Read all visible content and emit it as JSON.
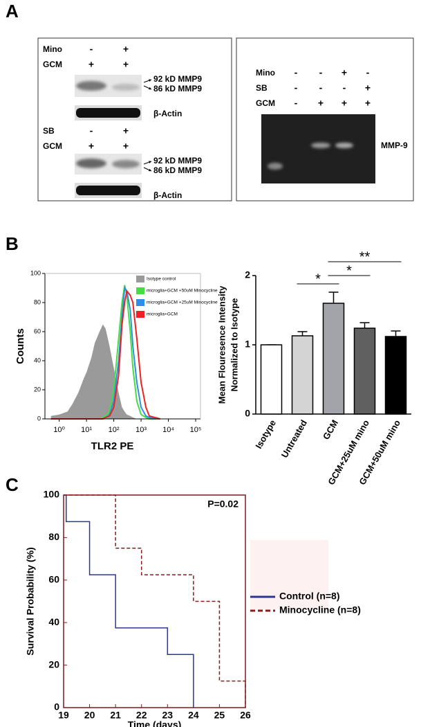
{
  "panel_labels": [
    "A",
    "B",
    "C"
  ],
  "blot_mino": {
    "rows": [
      {
        "label": "Mino",
        "marks": [
          "-",
          "+"
        ]
      },
      {
        "label": "GCM",
        "marks": [
          "+",
          "+"
        ]
      }
    ],
    "bands": [
      "92 kD MMP9",
      "86 kD MMP9"
    ],
    "control": "β-Actin"
  },
  "blot_sb": {
    "rows": [
      {
        "label": "SB",
        "marks": [
          "-",
          "+"
        ]
      },
      {
        "label": "GCM",
        "marks": [
          "+",
          "+"
        ]
      }
    ],
    "bands": [
      "92 kD MMP9",
      "86 kD MMP9"
    ],
    "control": "β-Actin"
  },
  "zymogram": {
    "rows": [
      {
        "label": "Mino",
        "marks": [
          "-",
          "-",
          "+",
          "-"
        ]
      },
      {
        "label": "SB",
        "marks": [
          "-",
          "-",
          "-",
          "+"
        ]
      },
      {
        "label": "GCM",
        "marks": [
          "-",
          "+",
          "+",
          "+"
        ]
      }
    ],
    "band": "MMP-9"
  },
  "chart_data": [
    {
      "type": "line",
      "xlabel": "TLR2 PE",
      "ylabel": "Counts",
      "log_x": true,
      "x": [
        0.5,
        1,
        2,
        3,
        5,
        8,
        10,
        15,
        20,
        30,
        40,
        50,
        70,
        100,
        150,
        200,
        250,
        300,
        400,
        500,
        700,
        1000,
        1500,
        2000,
        5000
      ],
      "series": [
        {
          "name": "Isotype control",
          "color": "#9a9a9a",
          "fill": true,
          "values": [
            2,
            3,
            5,
            10,
            18,
            28,
            32,
            42,
            52,
            60,
            65,
            62,
            50,
            35,
            18,
            8,
            5,
            3,
            2,
            1,
            0,
            0,
            0,
            0,
            0
          ]
        },
        {
          "name": "microglia+GCM +50uM Minocycline",
          "color": "#44dd44",
          "values": [
            0,
            0,
            0,
            0,
            0,
            0,
            0,
            0,
            0,
            0,
            1,
            2,
            5,
            20,
            55,
            80,
            92,
            85,
            60,
            35,
            12,
            3,
            1,
            0,
            0
          ]
        },
        {
          "name": "microglia+GCM +25uM Minocycline",
          "color": "#2f8fe8",
          "values": [
            0,
            0,
            0,
            0,
            0,
            0,
            0,
            0,
            0,
            0,
            0,
            1,
            3,
            12,
            40,
            70,
            90,
            88,
            75,
            50,
            25,
            8,
            2,
            1,
            0
          ]
        },
        {
          "name": "microglia+GCM",
          "color": "#ee2222",
          "values": [
            0,
            0,
            0,
            0,
            0,
            0,
            0,
            0,
            0,
            0,
            0,
            1,
            2,
            8,
            30,
            65,
            80,
            88,
            85,
            80,
            55,
            25,
            8,
            2,
            0
          ]
        }
      ],
      "xlim": [
        0.3,
        150000
      ],
      "xticks": [
        {
          "value": 1,
          "label": "10⁰"
        },
        {
          "value": 10,
          "label": "10¹"
        },
        {
          "value": 100,
          "label": "10²"
        },
        {
          "value": 1000,
          "label": "10³"
        },
        {
          "value": 10000,
          "label": "10⁴"
        },
        {
          "value": 100000,
          "label": "10⁵"
        }
      ],
      "ylim": [
        0,
        100
      ],
      "yticks": [
        0,
        20,
        40,
        60,
        80,
        100
      ]
    },
    {
      "type": "bar",
      "ylabel": [
        "Mean Flouresence Intensity",
        "Normalized to Isotype"
      ],
      "categories": [
        "Isotype",
        "Untreated",
        "GCM",
        "GCM+25uM mino",
        "GCM+50uM mino"
      ],
      "values": [
        1.0,
        1.13,
        1.6,
        1.24,
        1.12
      ],
      "errors": [
        0,
        0.06,
        0.16,
        0.08,
        0.08
      ],
      "colors": [
        "#ffffff",
        "#d4d4d4",
        "#a3a3aa",
        "#606060",
        "#000000"
      ],
      "annotations": [
        "*",
        "*",
        "**"
      ],
      "ylim": [
        0,
        2
      ],
      "yticks": [
        0,
        1,
        2
      ]
    },
    {
      "type": "step",
      "xlabel": "Time (days)",
      "ylabel": "Survival Probability (%)",
      "annotation": "P=0.02",
      "series": [
        {
          "name": "Control (n=8)",
          "color": "#2b3594",
          "x": [
            19,
            19.1,
            20,
            21,
            23,
            24
          ],
          "values": [
            100,
            87.5,
            62.5,
            37.5,
            25,
            0
          ]
        },
        {
          "name": "Minocycline (n=8)",
          "color": "#8b1a1a",
          "dashed": true,
          "x": [
            19,
            21,
            22,
            24,
            25,
            26
          ],
          "values": [
            100,
            75,
            62.5,
            50,
            12.5,
            0
          ]
        }
      ],
      "xlim": [
        19,
        26
      ],
      "xticks": [
        19,
        20,
        21,
        22,
        23,
        24,
        25,
        26
      ],
      "ylim": [
        0,
        100
      ],
      "yticks": [
        0,
        20,
        40,
        60,
        80,
        100
      ]
    }
  ]
}
